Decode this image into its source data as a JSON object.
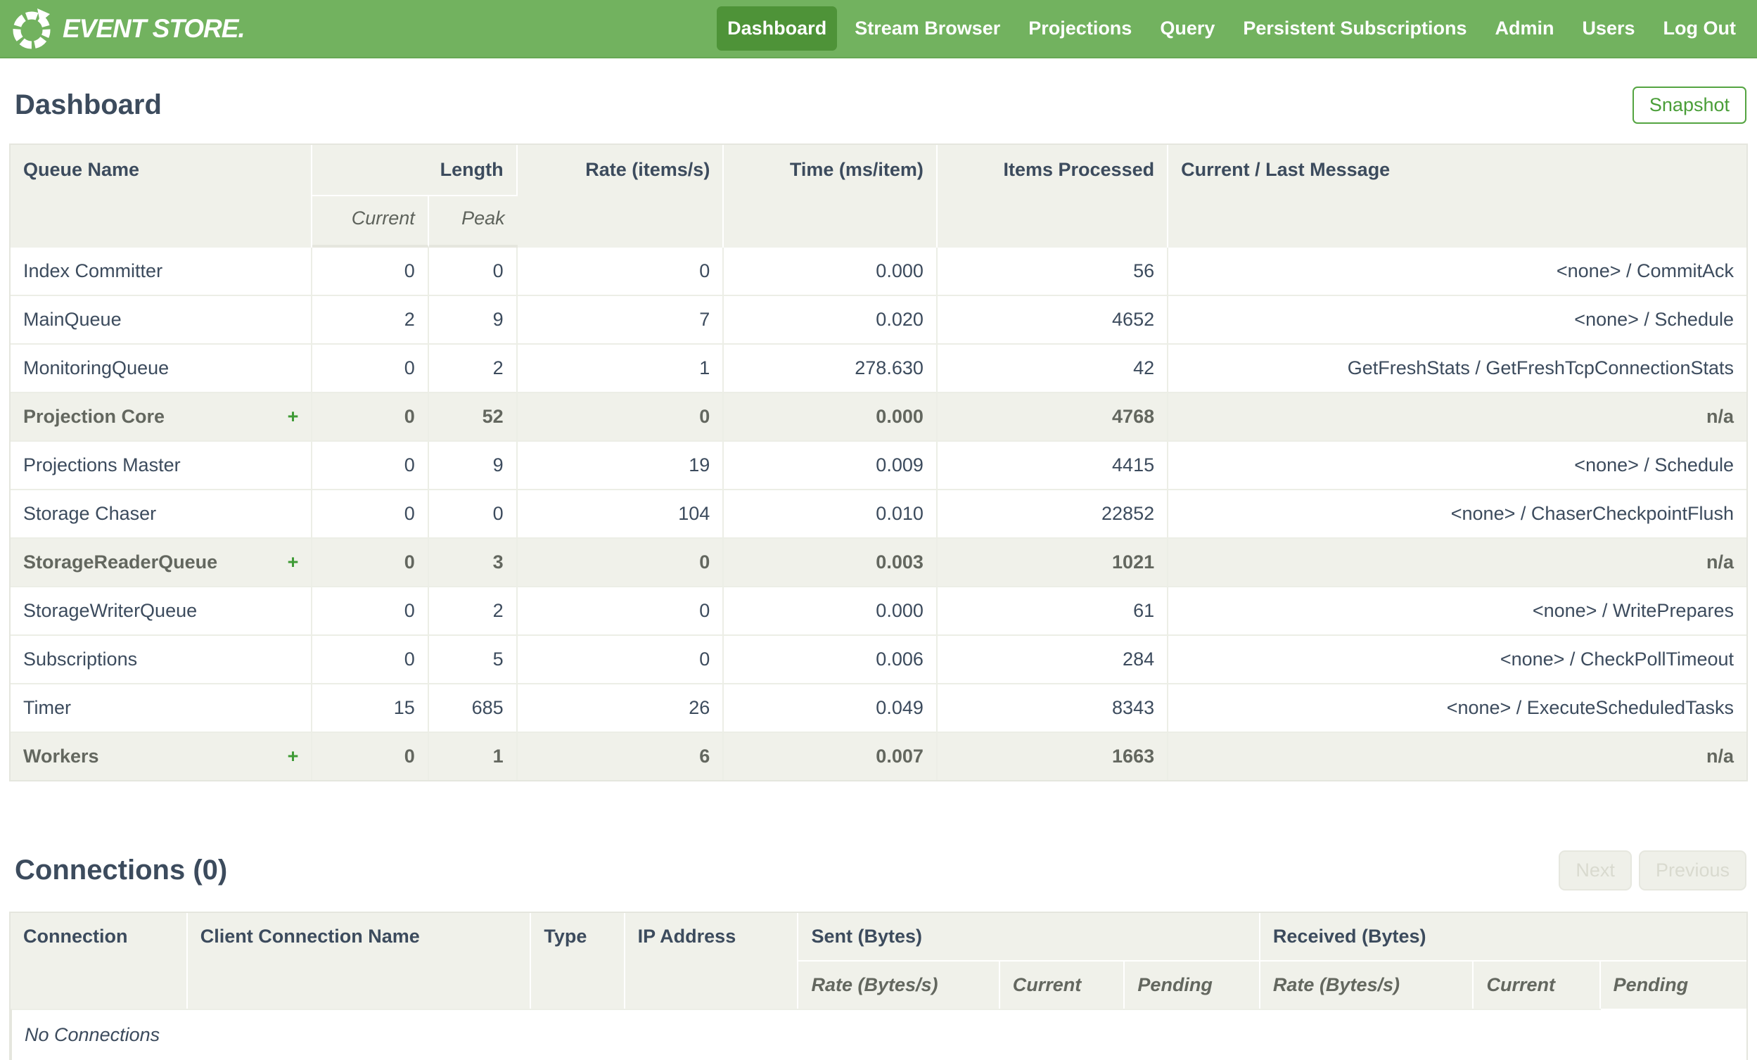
{
  "nav": {
    "brand": "EVENT STORE.",
    "items": [
      {
        "label": "Dashboard",
        "active": true
      },
      {
        "label": "Stream Browser",
        "active": false
      },
      {
        "label": "Projections",
        "active": false
      },
      {
        "label": "Query",
        "active": false
      },
      {
        "label": "Persistent Subscriptions",
        "active": false
      },
      {
        "label": "Admin",
        "active": false
      },
      {
        "label": "Users",
        "active": false
      },
      {
        "label": "Log Out",
        "active": false
      }
    ]
  },
  "page": {
    "title": "Dashboard",
    "snapshot_label": "Snapshot"
  },
  "queues_table": {
    "headers": {
      "queue_name": "Queue Name",
      "length": "Length",
      "current": "Current",
      "peak": "Peak",
      "rate": "Rate (items/s)",
      "time": "Time (ms/item)",
      "items_processed": "Items Processed",
      "message": "Current / Last Message"
    },
    "rows": [
      {
        "name": "Index Committer",
        "group": false,
        "current": "0",
        "peak": "0",
        "rate": "0",
        "time": "0.000",
        "items": "56",
        "message": "<none> / CommitAck"
      },
      {
        "name": "MainQueue",
        "group": false,
        "current": "2",
        "peak": "9",
        "rate": "7",
        "time": "0.020",
        "items": "4652",
        "message": "<none> / Schedule"
      },
      {
        "name": "MonitoringQueue",
        "group": false,
        "current": "0",
        "peak": "2",
        "rate": "1",
        "time": "278.630",
        "items": "42",
        "message": "GetFreshStats / GetFreshTcpConnectionStats"
      },
      {
        "name": "Projection Core",
        "group": true,
        "current": "0",
        "peak": "52",
        "rate": "0",
        "time": "0.000",
        "items": "4768",
        "message": "n/a"
      },
      {
        "name": "Projections Master",
        "group": false,
        "current": "0",
        "peak": "9",
        "rate": "19",
        "time": "0.009",
        "items": "4415",
        "message": "<none> / Schedule"
      },
      {
        "name": "Storage Chaser",
        "group": false,
        "current": "0",
        "peak": "0",
        "rate": "104",
        "time": "0.010",
        "items": "22852",
        "message": "<none> / ChaserCheckpointFlush"
      },
      {
        "name": "StorageReaderQueue",
        "group": true,
        "current": "0",
        "peak": "3",
        "rate": "0",
        "time": "0.003",
        "items": "1021",
        "message": "n/a"
      },
      {
        "name": "StorageWriterQueue",
        "group": false,
        "current": "0",
        "peak": "2",
        "rate": "0",
        "time": "0.000",
        "items": "61",
        "message": "<none> / WritePrepares"
      },
      {
        "name": "Subscriptions",
        "group": false,
        "current": "0",
        "peak": "5",
        "rate": "0",
        "time": "0.006",
        "items": "284",
        "message": "<none> / CheckPollTimeout"
      },
      {
        "name": "Timer",
        "group": false,
        "current": "15",
        "peak": "685",
        "rate": "26",
        "time": "0.049",
        "items": "8343",
        "message": "<none> / ExecuteScheduledTasks"
      },
      {
        "name": "Workers",
        "group": true,
        "current": "0",
        "peak": "1",
        "rate": "6",
        "time": "0.007",
        "items": "1663",
        "message": "n/a"
      }
    ],
    "expand_glyph": "+"
  },
  "connections": {
    "title": "Connections (0)",
    "next_label": "Next",
    "previous_label": "Previous",
    "headers": {
      "connection": "Connection",
      "client_name": "Client Connection Name",
      "type": "Type",
      "ip": "IP Address",
      "sent": "Sent (Bytes)",
      "received": "Received (Bytes)",
      "rate": "Rate (Bytes/s)",
      "current": "Current",
      "pending": "Pending"
    },
    "empty_text": "No Connections"
  },
  "colors": {
    "nav_green": "#72b25f",
    "nav_active_green": "#4e9338",
    "accent_green": "#4a9e38",
    "text_slate": "#3c4b5d",
    "header_bg": "#f0f1ea"
  }
}
